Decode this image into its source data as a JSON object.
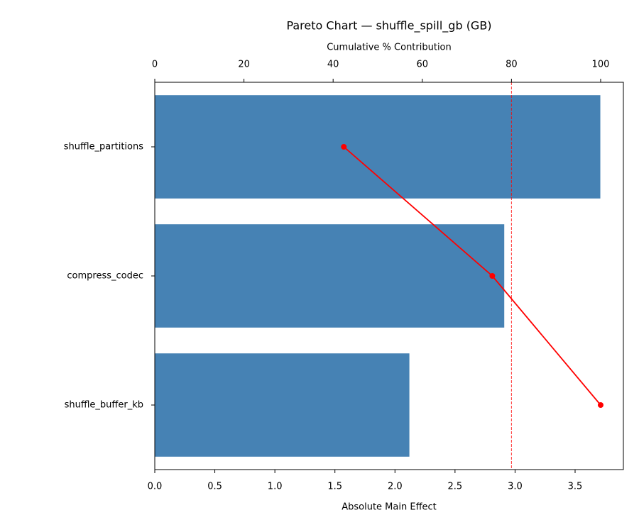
{
  "chart_data": {
    "type": "bar",
    "orientation": "horizontal",
    "title": "Pareto Chart — shuffle_spill_gb (GB)",
    "xlabel": "Absolute Main Effect",
    "x2label": "Cumulative % Contribution",
    "categories": [
      "shuffle_partitions",
      "compress_codec",
      "shuffle_buffer_kb"
    ],
    "values": [
      3.71,
      2.91,
      2.12
    ],
    "color": "#4682b4",
    "cumulative": {
      "values": [
        42.4,
        75.7,
        100
      ],
      "color": "#ff0000"
    },
    "threshold": 80,
    "threshold_color": "#ff0000",
    "xlim": [
      0,
      3.902
    ],
    "xticks": [
      {
        "value": 0,
        "label": "0.0"
      },
      0.5,
      {
        "value": 1,
        "label": "1.0"
      },
      1.5,
      {
        "value": 2,
        "label": "2.0"
      },
      2.5,
      {
        "value": 3,
        "label": "3.0"
      },
      3.5
    ],
    "x2lim": [
      0,
      105.1
    ],
    "x2ticks": [
      0,
      20,
      40,
      60,
      80,
      100
    ]
  }
}
